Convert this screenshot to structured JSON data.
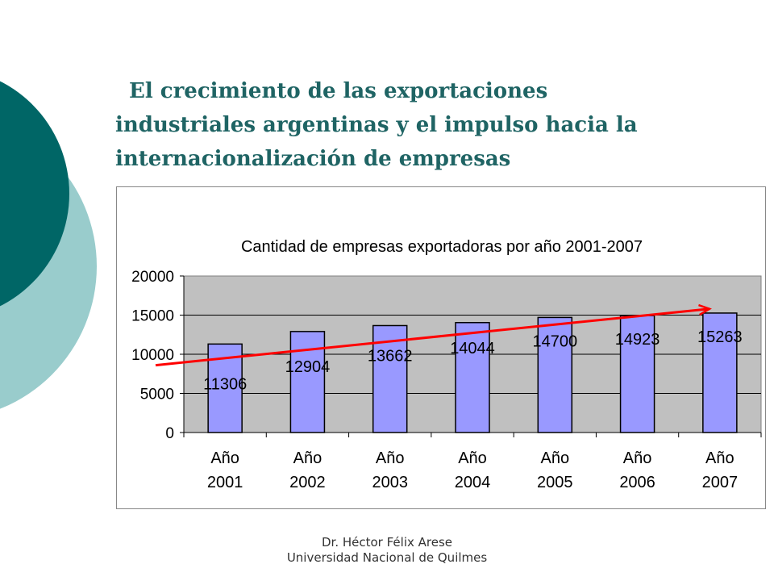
{
  "slide": {
    "title_line1": "El crecimiento de las exportaciones",
    "title_line2": "industriales argentinas y el impulso hacia la",
    "title_line3": "internacionalización de empresas",
    "footer_line1": "Dr. Héctor Félix Arese",
    "footer_line2": "Universidad Nacional de Quilmes"
  },
  "colors": {
    "title": "#1f6464",
    "decor_dark": "#006666",
    "decor_light": "#99cccc",
    "bar_fill": "#9999ff",
    "plot_bg": "#c0c0c0",
    "trend_arrow": "#ff0000"
  },
  "chart_data": {
    "type": "bar",
    "title": "Cantidad de empresas exportadoras por año 2001-2007",
    "categories": [
      [
        "Año",
        "2001"
      ],
      [
        "Año",
        "2002"
      ],
      [
        "Año",
        "2003"
      ],
      [
        "Año",
        "2004"
      ],
      [
        "Año",
        "2005"
      ],
      [
        "Año",
        "2006"
      ],
      [
        "Año",
        "2007"
      ]
    ],
    "values": [
      11306,
      12904,
      13662,
      14044,
      14700,
      14923,
      15263
    ],
    "xlabel": "",
    "ylabel": "",
    "ylim": [
      0,
      20000
    ],
    "yticks": [
      0,
      5000,
      10000,
      15000,
      20000
    ],
    "grid": true,
    "legend": "none",
    "trend_arrow": {
      "from_value": 8600,
      "to_value": 15800,
      "color": "#ff0000"
    }
  }
}
